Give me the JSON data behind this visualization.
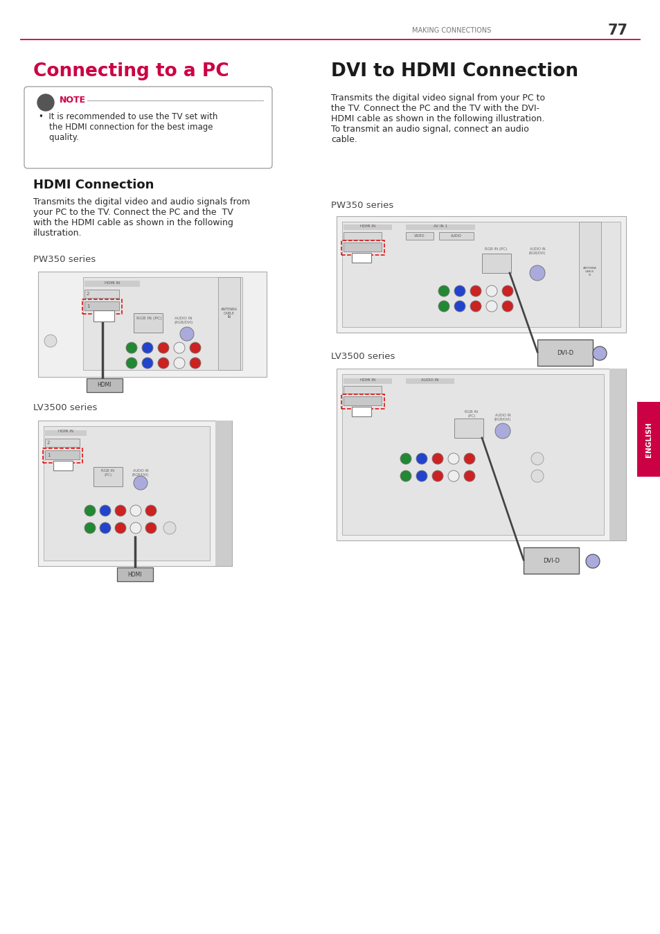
{
  "page_num": "77",
  "header_text": "MAKING CONNECTIONS",
  "header_line_color": "#cc0044",
  "bg_color": "#ffffff",
  "left_title": "Connecting to a PC",
  "left_title_color": "#cc0044",
  "note_title": "NOTE",
  "note_title_color": "#cc0044",
  "note_line1": "•  It is recommended to use the TV set with",
  "note_line2": "    the HDMI connection for the best image",
  "note_line3": "    quality.",
  "hdmi_title": "HDMI Connection",
  "hdmi_text": "Transmits the digital video and audio signals from\nyour PC to the TV. Connect the PC and the  TV\nwith the HDMI cable as shown in the following\nillustration.",
  "pw350_label": "PW350 series",
  "lv3500_label": "LV3500 series",
  "right_title": "DVI to HDMI Connection",
  "dvi_text": "Transmits the digital video signal from your PC to\nthe TV. Connect the PC and the TV with the DVI-\nHDMI cable as shown in the following illustration.\nTo transmit an audio signal, connect an audio\ncable.",
  "pw350_label2": "PW350 series",
  "lv3500_label2": "LV3500 series",
  "english_tab_color": "#cc0044",
  "english_text": "ENGLISH",
  "text_color": "#2a2a2a",
  "body_fontsize": 9.0,
  "label_fontsize": 9.5,
  "subhead_fontsize": 13,
  "component_colors": [
    "#228833",
    "#2244cc",
    "#cc2222",
    "#eeeeee",
    "#cc2222"
  ]
}
